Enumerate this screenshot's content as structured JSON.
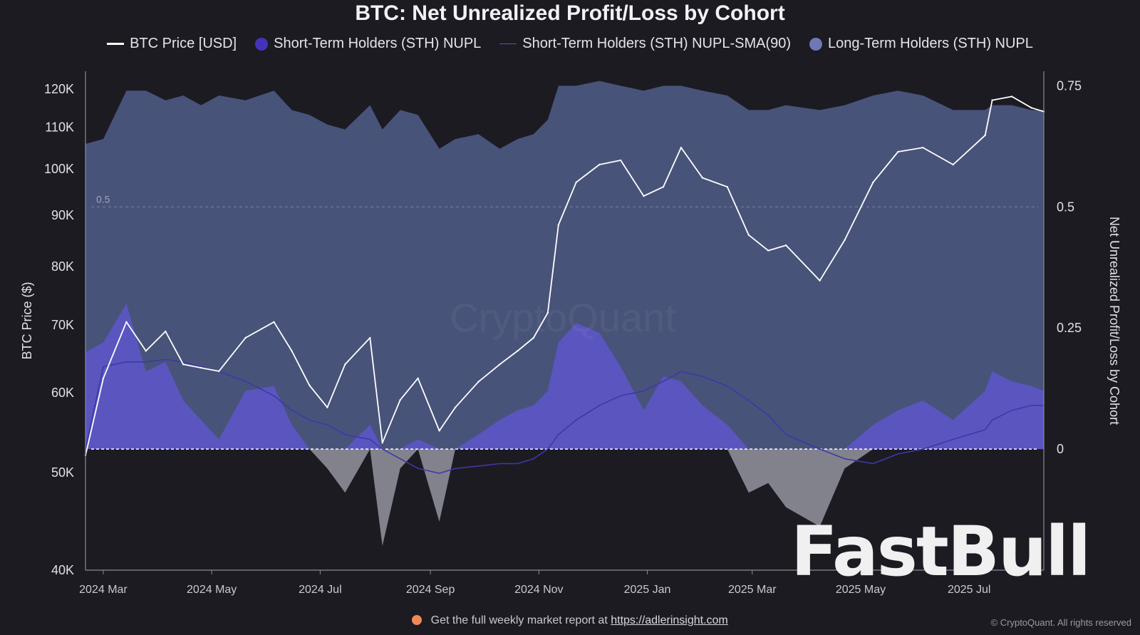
{
  "colors": {
    "background": "#1c1b22",
    "lth_fill": "#4b5680",
    "sth_fill": "#5d55c8",
    "sth_negative_fill": "#8e8e99",
    "btc_line": "#ffffff",
    "sma_line": "#3f37a8",
    "legend_sth": "#4433b8",
    "legend_lth": "#6f78b7"
  },
  "legend_icons": [
    "line-swatch",
    "dot-swatch",
    "thin-line-swatch",
    "dot-swatch"
  ],
  "footer": {
    "text": "Get the full weekly market report at",
    "link": "https://adlerinsight.com",
    "copyright": "© CryptoQuant. All rights reserved"
  },
  "branding": {
    "watermark": "FastBull",
    "center_watermark": "CryptoQuant"
  },
  "chart_data": {
    "type": "area",
    "title": "BTC: Net Unrealized Profit/Loss by Cohort",
    "ylabel_left": "BTC Price ($)",
    "ylabel_right": "Net Unrealized Profit/Loss by Cohort",
    "left_axis": {
      "scale": "log",
      "ylim": [
        40000,
        125000
      ],
      "ticks": [
        40000,
        50000,
        60000,
        70000,
        80000,
        90000,
        100000,
        110000,
        120000
      ],
      "tick_labels": [
        "40K",
        "50K",
        "60K",
        "70K",
        "80K",
        "90K",
        "100K",
        "110K",
        "120K"
      ]
    },
    "right_axis": {
      "ylim": [
        -0.25,
        0.78
      ],
      "ticks": [
        0,
        0.25,
        0.5,
        0.75
      ],
      "tick_labels": [
        "0",
        "0.25",
        "0.5",
        "0.75"
      ]
    },
    "reference_line_label": "0.5",
    "xlim": [
      "2024-02-20",
      "2025-08-12"
    ],
    "x_ticks": [
      "2024-03-01",
      "2024-05-01",
      "2024-07-01",
      "2024-09-01",
      "2024-11-01",
      "2025-01-01",
      "2025-03-01",
      "2025-05-01",
      "2025-07-01"
    ],
    "x_tick_labels": [
      "2024 Mar",
      "2024 May",
      "2024 Jul",
      "2024 Sep",
      "2024 Nov",
      "2025 Jan",
      "2025 Mar",
      "2025 May",
      "2025 Jul"
    ],
    "x": [
      "2024-02-20",
      "2024-03-01",
      "2024-03-14",
      "2024-03-25",
      "2024-04-05",
      "2024-04-15",
      "2024-04-25",
      "2024-05-05",
      "2024-05-20",
      "2024-06-05",
      "2024-06-15",
      "2024-06-25",
      "2024-07-05",
      "2024-07-15",
      "2024-07-29",
      "2024-08-05",
      "2024-08-15",
      "2024-08-25",
      "2024-09-06",
      "2024-09-15",
      "2024-09-28",
      "2024-10-10",
      "2024-10-20",
      "2024-10-29",
      "2024-11-06",
      "2024-11-12",
      "2024-11-22",
      "2024-12-05",
      "2024-12-17",
      "2024-12-30",
      "2025-01-10",
      "2025-01-20",
      "2025-02-01",
      "2025-02-15",
      "2025-02-27",
      "2025-03-10",
      "2025-03-20",
      "2025-04-08",
      "2025-04-22",
      "2025-05-08",
      "2025-05-22",
      "2025-06-05",
      "2025-06-22",
      "2025-07-10",
      "2025-07-14",
      "2025-07-25",
      "2025-08-05",
      "2025-08-12"
    ],
    "series": [
      {
        "name": "BTC Price [USD]",
        "axis": "left",
        "values": [
          52000,
          62000,
          70500,
          66000,
          69000,
          64000,
          63500,
          63000,
          68000,
          70500,
          66000,
          61000,
          58000,
          64000,
          68000,
          53500,
          59000,
          62000,
          55000,
          58000,
          61500,
          64000,
          66000,
          68000,
          72000,
          88000,
          97000,
          101000,
          102000,
          94000,
          96000,
          105000,
          98000,
          96000,
          86000,
          83000,
          84000,
          77500,
          85000,
          97000,
          104000,
          105000,
          101000,
          108000,
          117000,
          118000,
          115000,
          114000
        ]
      },
      {
        "name": "Short-Term Holders (STH) NUPL",
        "axis": "right",
        "values": [
          0.2,
          0.22,
          0.3,
          0.16,
          0.18,
          0.1,
          0.06,
          0.02,
          0.12,
          0.13,
          0.05,
          0.0,
          -0.04,
          -0.09,
          0.05,
          -0.2,
          -0.04,
          0.02,
          -0.15,
          0.0,
          0.03,
          0.06,
          0.08,
          0.09,
          0.12,
          0.22,
          0.26,
          0.24,
          0.17,
          0.08,
          0.15,
          0.14,
          0.09,
          0.05,
          -0.09,
          -0.07,
          -0.12,
          -0.16,
          -0.04,
          0.05,
          0.08,
          0.1,
          0.06,
          0.12,
          0.16,
          0.14,
          0.13,
          0.12
        ]
      },
      {
        "name": "Short-Term Holders (STH) NUPL-SMA(90)",
        "axis": "right",
        "values": [
          0.0,
          0.17,
          0.18,
          0.18,
          0.185,
          0.18,
          0.17,
          0.16,
          0.14,
          0.11,
          0.08,
          0.06,
          0.05,
          0.03,
          0.02,
          0.0,
          -0.02,
          -0.04,
          -0.05,
          -0.04,
          -0.035,
          -0.03,
          -0.03,
          -0.02,
          0.0,
          0.03,
          0.06,
          0.09,
          0.11,
          0.12,
          0.14,
          0.16,
          0.15,
          0.13,
          0.1,
          0.07,
          0.03,
          0.0,
          -0.02,
          -0.03,
          -0.01,
          0.0,
          0.02,
          0.04,
          0.06,
          0.08,
          0.09,
          0.09
        ]
      },
      {
        "name": "Long-Term Holders (STH) NUPL",
        "axis": "right",
        "values": [
          0.63,
          0.64,
          0.74,
          0.74,
          0.72,
          0.73,
          0.71,
          0.73,
          0.72,
          0.74,
          0.7,
          0.69,
          0.67,
          0.66,
          0.71,
          0.66,
          0.7,
          0.69,
          0.62,
          0.64,
          0.65,
          0.62,
          0.64,
          0.65,
          0.68,
          0.75,
          0.75,
          0.76,
          0.75,
          0.74,
          0.75,
          0.75,
          0.74,
          0.73,
          0.7,
          0.7,
          0.71,
          0.7,
          0.71,
          0.73,
          0.74,
          0.73,
          0.7,
          0.7,
          0.71,
          0.71,
          0.7,
          0.7
        ]
      }
    ],
    "grid": false,
    "legend_position": "top-center"
  }
}
